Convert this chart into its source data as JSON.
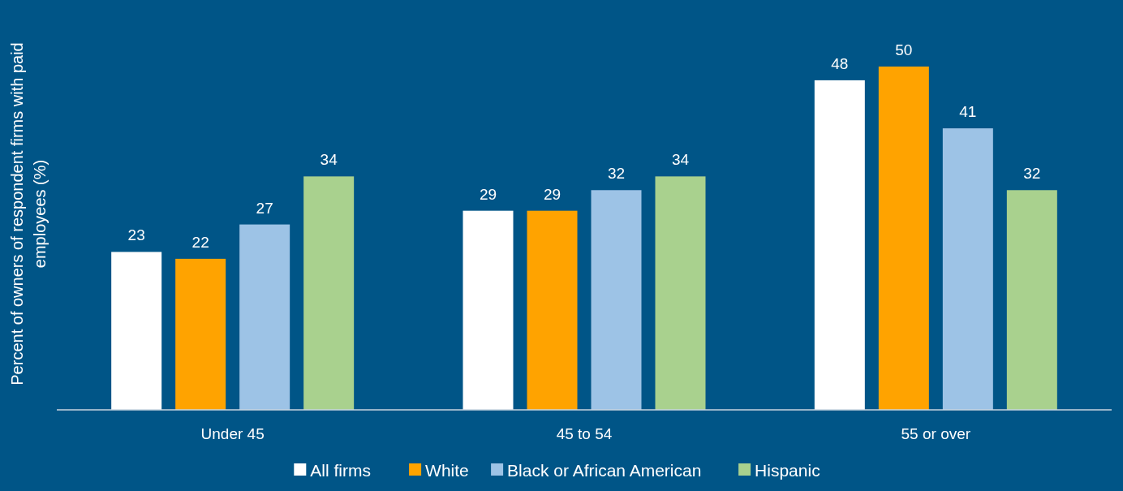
{
  "chart_data": {
    "type": "bar",
    "ylabel": "Percent of owners of respondent firms with paid employees (%)",
    "categories": [
      "Under 45",
      "45 to 54",
      "55 or over"
    ],
    "series": [
      {
        "name": "All firms",
        "color": "#ffffff",
        "values": [
          23,
          29,
          48
        ]
      },
      {
        "name": "White",
        "color": "#ffa300",
        "values": [
          22,
          29,
          50
        ]
      },
      {
        "name": "Black or African American",
        "color": "#9dc3e6",
        "values": [
          27,
          32,
          41
        ]
      },
      {
        "name": "Hispanic",
        "color": "#a9d18e",
        "values": [
          34,
          34,
          32
        ]
      }
    ],
    "data_labels": true,
    "legend": "bottom"
  }
}
